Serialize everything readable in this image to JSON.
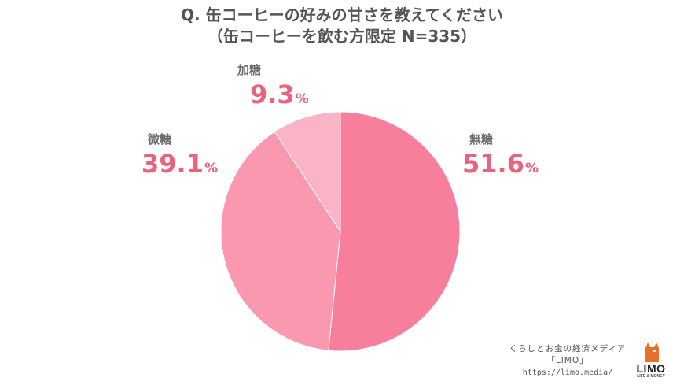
{
  "title_line1": "Q. 缶コーヒーの好みの甘さを教えてください",
  "title_line2": "（缶コーヒーを飲む方限定 N=335）",
  "chart_data": {
    "type": "pie",
    "slices": [
      {
        "label": "無糖",
        "value": 51.6,
        "value_text": "51.6",
        "unit": "%",
        "color": "#f77f9b"
      },
      {
        "label": "微糖",
        "value": 39.1,
        "value_text": "39.1",
        "unit": "%",
        "color": "#f998af"
      },
      {
        "label": "加糖",
        "value": 9.3,
        "value_text": "9.3",
        "unit": "%",
        "color": "#fbb4c5"
      }
    ],
    "start": "12 o'clock, clockwise"
  },
  "brand": {
    "line1": "くらしとお金の経済メディア",
    "line2": "「LIMO」",
    "url": "https://limo.media/",
    "logo_word": "LIMO",
    "logo_tagline": "LIFE & MONEY",
    "logo_color": "#e8702a"
  }
}
